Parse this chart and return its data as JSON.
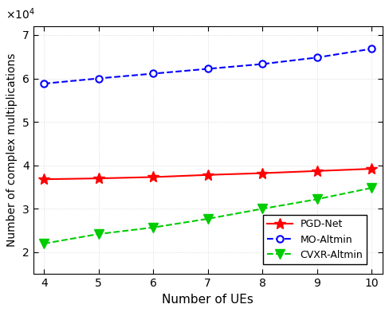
{
  "x": [
    4,
    5,
    6,
    7,
    8,
    9,
    10
  ],
  "pgd_net": [
    36800,
    37000,
    37300,
    37800,
    38200,
    38700,
    39200
  ],
  "mo_altmin": [
    58800,
    60000,
    61100,
    62200,
    63300,
    64800,
    66800
  ],
  "cvxr_altmin": [
    22000,
    24200,
    25700,
    27700,
    30000,
    32200,
    34800
  ],
  "pgd_color": "#ff0000",
  "mo_color": "#0000ff",
  "cvxr_color": "#00cc00",
  "xlabel": "Number of UEs",
  "ylabel": "Number of complex multiplications",
  "pgd_label": "PGD-Net",
  "mo_label": "MO-Altmin",
  "cvxr_label": "CVXR-Altmin",
  "ylim": [
    15000,
    72000
  ],
  "xlim": [
    3.8,
    10.2
  ],
  "yticks": [
    20000,
    30000,
    40000,
    50000,
    60000,
    70000
  ],
  "xticks": [
    4,
    5,
    6,
    7,
    8,
    9,
    10
  ],
  "grid_color": "#d3d3d3",
  "bg_color": "#ffffff"
}
